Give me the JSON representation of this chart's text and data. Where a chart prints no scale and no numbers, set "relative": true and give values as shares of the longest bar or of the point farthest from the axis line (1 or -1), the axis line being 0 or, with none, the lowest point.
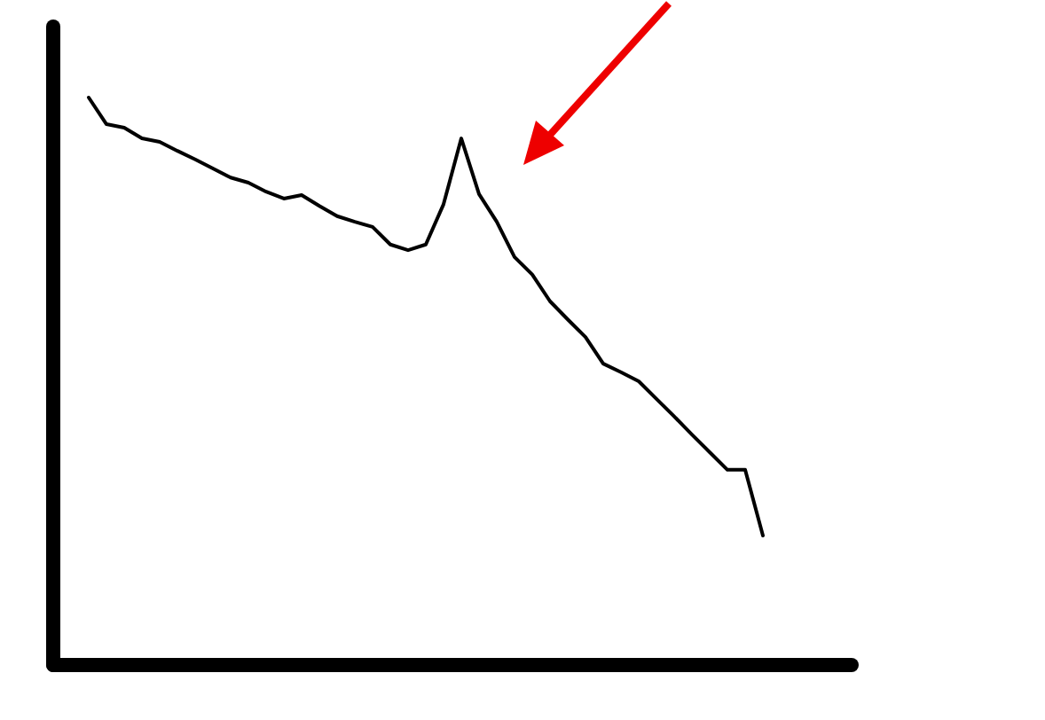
{
  "chart_data": {
    "type": "line",
    "relative": true,
    "color": "#000000",
    "marker": "none",
    "line_style": "solid",
    "grid": false,
    "categories": [
      null,
      null,
      null,
      null,
      null,
      null,
      null,
      null,
      null,
      null,
      null,
      null,
      null,
      null,
      null,
      null,
      null,
      null,
      null,
      null,
      null,
      null,
      null,
      null,
      null,
      null,
      null,
      null,
      null,
      null,
      null,
      null,
      null,
      null,
      null,
      null,
      null,
      null,
      null,
      null,
      null,
      null,
      null,
      null,
      null,
      null
    ],
    "values": [
      null,
      null,
      1.0,
      0.953,
      0.947,
      0.928,
      0.922,
      0.906,
      0.891,
      0.875,
      0.859,
      0.85,
      0.834,
      0.822,
      0.828,
      0.809,
      0.791,
      0.781,
      0.772,
      0.741,
      0.731,
      0.741,
      0.812,
      0.928,
      0.83,
      0.781,
      0.719,
      0.688,
      0.641,
      0.609,
      0.578,
      0.531,
      0.516,
      0.5,
      0.469,
      0.438,
      0.406,
      0.375,
      0.344,
      0.344,
      0.228,
      null,
      null,
      null,
      null,
      null
    ]
  }
}
